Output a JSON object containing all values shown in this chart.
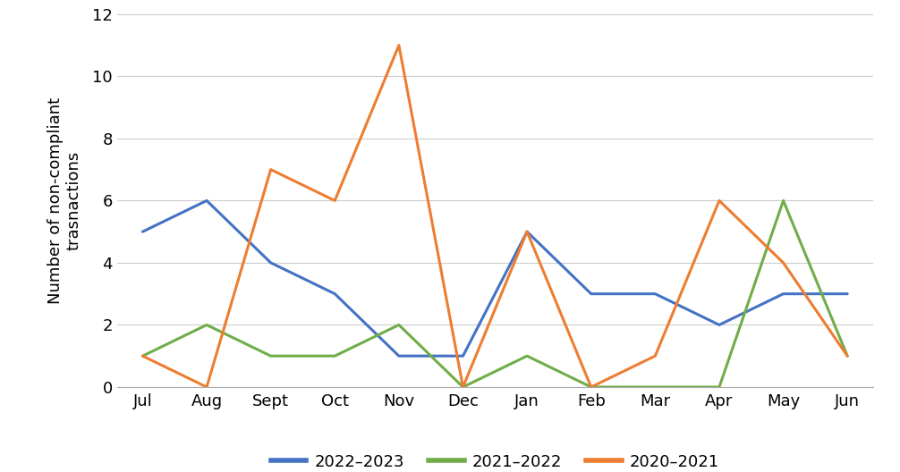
{
  "months": [
    "Jul",
    "Aug",
    "Sept",
    "Oct",
    "Nov",
    "Dec",
    "Jan",
    "Feb",
    "Mar",
    "Apr",
    "May",
    "Jun"
  ],
  "series": {
    "2022–2023": [
      5,
      6,
      4,
      3,
      1,
      1,
      5,
      3,
      3,
      2,
      3,
      3
    ],
    "2021–2022": [
      1,
      2,
      1,
      1,
      2,
      0,
      1,
      0,
      0,
      0,
      6,
      1
    ],
    "2020–2021": [
      1,
      0,
      7,
      6,
      11,
      0,
      5,
      0,
      1,
      6,
      4,
      1
    ]
  },
  "colors": {
    "2022–2023": "#4472C4",
    "2021–2022": "#70AD47",
    "2020–2021": "#ED7D31"
  },
  "ylabel": "Number of non-compliant\ntrasnactions",
  "ylim": [
    0,
    12
  ],
  "yticks": [
    0,
    2,
    4,
    6,
    8,
    10,
    12
  ],
  "legend_order": [
    "2022–2023",
    "2021–2022",
    "2020–2021"
  ],
  "background_color": "#ffffff",
  "grid_color": "#cccccc",
  "line_width": 2.2,
  "ylabel_fontsize": 13,
  "tick_fontsize": 13,
  "legend_fontsize": 13
}
